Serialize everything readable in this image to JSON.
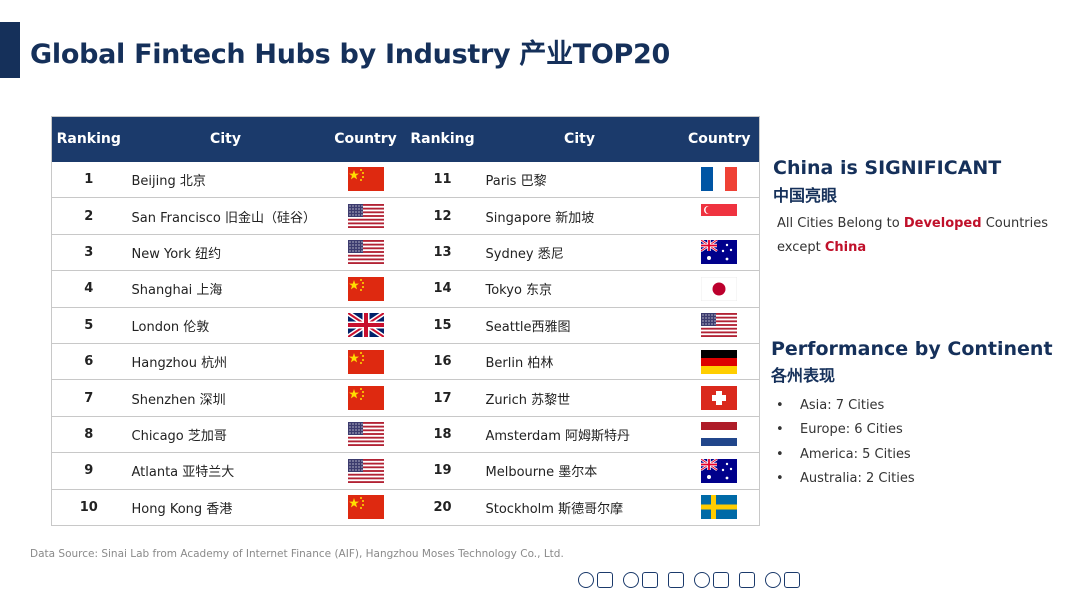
{
  "title": "Global Fintech Hubs by Industry  产业TOP20",
  "table": {
    "headers": [
      "Ranking",
      "City",
      "Country",
      "Ranking",
      "City",
      "Country"
    ],
    "rows": [
      {
        "rank": "1",
        "city": "Beijing  北京",
        "flag": "china"
      },
      {
        "rank": "2",
        "city": "San Francisco  旧金山（硅谷）",
        "flag": "usa"
      },
      {
        "rank": "3",
        "city": "New York  纽约",
        "flag": "usa"
      },
      {
        "rank": "4",
        "city": "Shanghai  上海",
        "flag": "china"
      },
      {
        "rank": "5",
        "city": "London  伦敦",
        "flag": "uk"
      },
      {
        "rank": "6",
        "city": "Hangzhou  杭州",
        "flag": "china"
      },
      {
        "rank": "7",
        "city": "Shenzhen  深圳",
        "flag": "china"
      },
      {
        "rank": "8",
        "city": "Chicago  芝加哥",
        "flag": "usa"
      },
      {
        "rank": "9",
        "city": "Atlanta  亚特兰大",
        "flag": "usa"
      },
      {
        "rank": "10",
        "city": "Hong Kong  香港",
        "flag": "china"
      },
      {
        "rank": "11",
        "city": "Paris  巴黎",
        "flag": "france"
      },
      {
        "rank": "12",
        "city": "Singapore  新加坡",
        "flag": "singapore"
      },
      {
        "rank": "13",
        "city": "Sydney  悉尼",
        "flag": "australia"
      },
      {
        "rank": "14",
        "city": "Tokyo  东京",
        "flag": "japan"
      },
      {
        "rank": "15",
        "city": "Seattle西雅图",
        "flag": "usa"
      },
      {
        "rank": "16",
        "city": "Berlin  柏林",
        "flag": "germany"
      },
      {
        "rank": "17",
        "city": "Zurich  苏黎世",
        "flag": "switzerland"
      },
      {
        "rank": "18",
        "city": "Amsterdam  阿姆斯特丹",
        "flag": "netherlands"
      },
      {
        "rank": "19",
        "city": "Melbourne  墨尔本",
        "flag": "australia"
      },
      {
        "rank": "20",
        "city": "Stockholm  斯德哥尔摩",
        "flag": "sweden"
      }
    ]
  },
  "side": {
    "heading1": "China is SIGNIFICANT",
    "heading1_cn": "中国亮眼",
    "para_a": "All Cities Belong to ",
    "para_b": "Developed",
    "para_c": " Countries except ",
    "para_d": "China",
    "heading2": "Performance by Continent",
    "heading2_cn": "各州表现",
    "bullet": "•",
    "continents": [
      "Asia: 7 Cities",
      "Europe: 6 Cities",
      "America: 5 Cities",
      "Australia: 2  Cities"
    ]
  },
  "source": "Data Source: Sinai Lab from Academy of Internet Finance (AIF), Hangzhou  Moses Technology  Co., Ltd.",
  "colors": {
    "navy": "#15305a",
    "header": "#1b3a6b",
    "red_text": "#c0102a"
  }
}
